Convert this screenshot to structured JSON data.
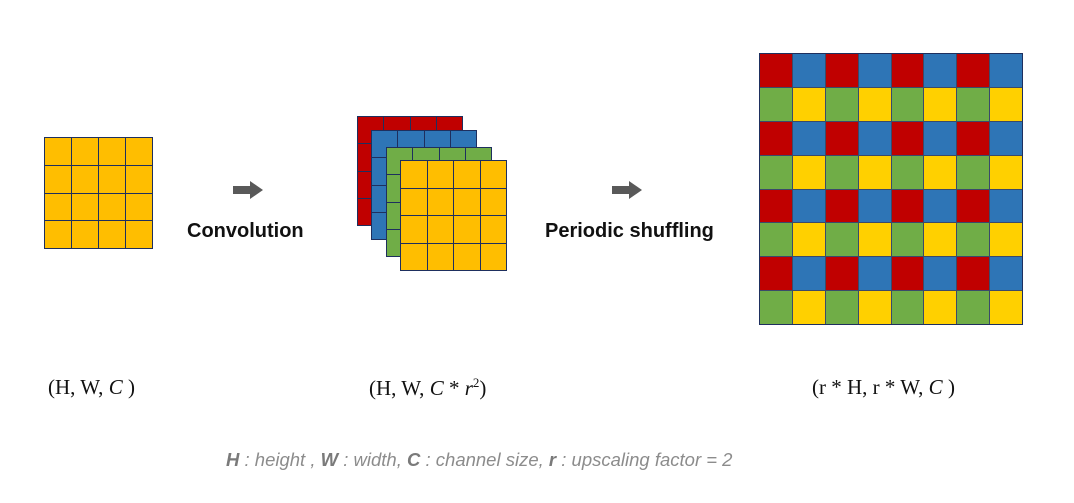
{
  "steps": {
    "convolution_label": "Convolution",
    "shuffle_label": "Periodic shuffling"
  },
  "colors": {
    "input": "#FFBE00",
    "red": "#C00000",
    "blue": "#2E75B6",
    "green": "#70AD47",
    "yellow": "#FFD000",
    "grid_line": "#1E2F5E",
    "arrow": "#595959",
    "legend_text": "#8C8C8C"
  },
  "grid_size": 4,
  "output_grid_size": 8,
  "shapes": {
    "input": {
      "open": "(H, W, ",
      "c": "C",
      "close": " )"
    },
    "conv": {
      "open": "(H, W, ",
      "c": "C",
      "mid": " * ",
      "r": "r",
      "exp": "2",
      "close": ")"
    },
    "output": {
      "open": "(r * H, r * W, ",
      "c": "C",
      "close": " )"
    }
  },
  "legend": {
    "h_sym": "H",
    "h_text": " : height , ",
    "w_sym": "W",
    "w_text": " : width, ",
    "c_sym": "C",
    "c_text": " : channel size, ",
    "r_sym": "r",
    "r_text": " : upscaling factor = 2"
  }
}
